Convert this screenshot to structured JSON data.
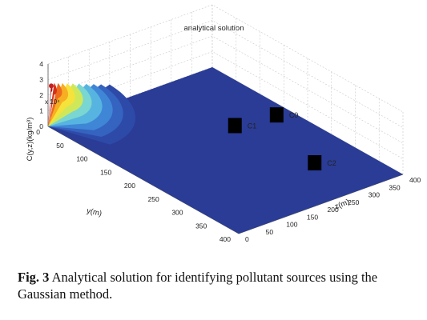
{
  "chart_data": {
    "type": "surface",
    "title": "analytical solution",
    "xlabel": "y(m)",
    "ylabel": "z(m)",
    "zlabel": "C(y,z)(kg/m³)",
    "z_exponent": "x 10⁴",
    "x_ticks": [
      "0",
      "50",
      "100",
      "150",
      "200",
      "250",
      "300",
      "350",
      "400"
    ],
    "y_ticks": [
      "0",
      "50",
      "100",
      "150",
      "200",
      "250",
      "300",
      "350",
      "400"
    ],
    "z_ticks": [
      "0",
      "1",
      "2",
      "3",
      "4"
    ],
    "xlim": [
      0,
      400
    ],
    "ylim": [
      0,
      400
    ],
    "zlim": [
      0,
      40000
    ],
    "grid": true,
    "peak": {
      "y": 0,
      "z": 0,
      "value": 28000
    },
    "markers": [
      {
        "label": "C1",
        "y": 150,
        "z": 280
      },
      {
        "label": "C0",
        "y": 160,
        "z": 370
      },
      {
        "label": "C2",
        "y": 300,
        "z": 300
      }
    ],
    "colors": {
      "surface": "#2a3c96",
      "peak": "#c81e1e",
      "marker": "#000000"
    }
  },
  "caption": {
    "label": "Fig. 3",
    "text": "Analytical solution for identifying pollutant sources using the Gaussian method."
  }
}
